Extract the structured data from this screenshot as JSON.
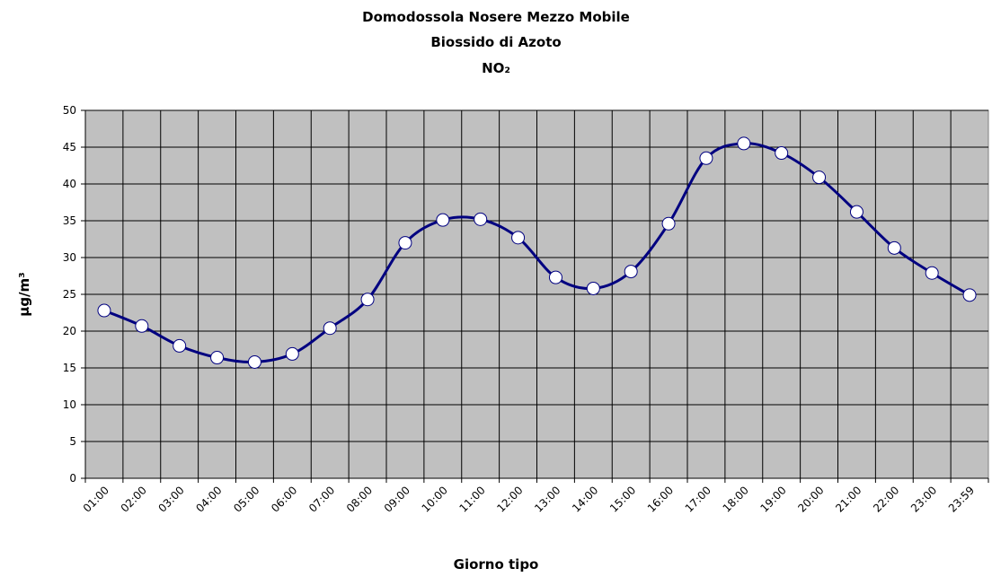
{
  "chart_data": {
    "type": "line",
    "title": "Domodossola Nosere Mezzo Mobile",
    "subtitle": "Biossido di Azoto",
    "subtitle2": "NO₂",
    "x_label": "Giorno tipo",
    "y_label": "µg/m³",
    "categories": [
      "01:00",
      "02:00",
      "03:00",
      "04:00",
      "05:00",
      "06:00",
      "07:00",
      "08:00",
      "09:00",
      "10:00",
      "11:00",
      "12:00",
      "13:00",
      "14:00",
      "15:00",
      "16:00",
      "17:00",
      "18:00",
      "19:00",
      "20:00",
      "21:00",
      "22:00",
      "23:00",
      "23:59"
    ],
    "series": [
      {
        "name": "NO₂",
        "color": "#000080",
        "values": [
          22.8,
          20.7,
          18.0,
          16.4,
          15.8,
          16.9,
          20.4,
          24.3,
          32.0,
          35.1,
          35.2,
          32.7,
          27.3,
          25.8,
          28.1,
          34.6,
          43.5,
          45.5,
          44.2,
          40.9,
          36.2,
          31.3,
          27.9,
          24.9
        ]
      }
    ],
    "ylim": [
      0,
      50
    ],
    "yticks": [
      0,
      5,
      10,
      15,
      20,
      25,
      30,
      35,
      40,
      45,
      50
    ],
    "grid": true,
    "plot_background": "#c0c0c0"
  }
}
